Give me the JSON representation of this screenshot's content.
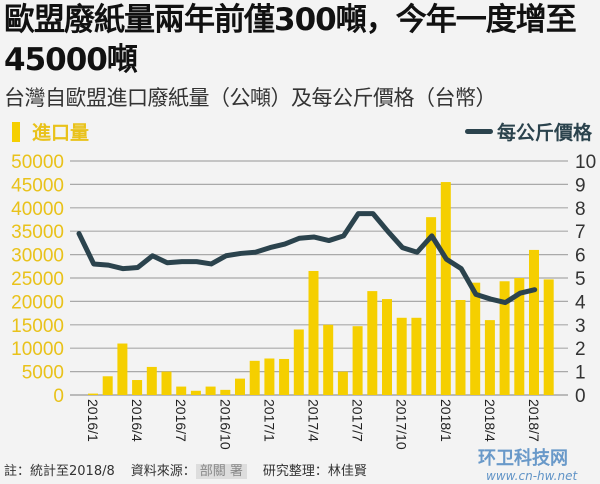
{
  "chart_data": {
    "type": "bar+line",
    "title": "歐盟廢紙量兩年前僅300噸，今年一度增至45000噸",
    "subtitle": "台灣自歐盟進口廢紙量（公噸）及每公斤價格（台幣）",
    "categories": [
      "2016/1",
      "2016/2",
      "2016/3",
      "2016/4",
      "2016/5",
      "2016/6",
      "2016/7",
      "2016/8",
      "2016/9",
      "2016/10",
      "2016/11",
      "2016/12",
      "2017/1",
      "2017/2",
      "2017/3",
      "2017/4",
      "2017/5",
      "2017/6",
      "2017/7",
      "2017/8",
      "2017/9",
      "2017/10",
      "2017/11",
      "2017/12",
      "2018/1",
      "2018/2",
      "2018/3",
      "2018/4",
      "2018/5",
      "2018/6",
      "2018/7",
      "2018/8"
    ],
    "tick_labels": [
      "2016/1",
      "2016/4",
      "2016/7",
      "2016/10",
      "2017/1",
      "2017/4",
      "2017/7",
      "2017/10",
      "2018/1",
      "2018/4",
      "2018/7"
    ],
    "series": [
      {
        "name": "進口量",
        "type": "bar",
        "axis": "left",
        "color": "#f5cf00",
        "values": [
          300,
          4000,
          11000,
          3200,
          6000,
          5000,
          1800,
          900,
          1800,
          1100,
          3500,
          7300,
          7800,
          7700,
          14000,
          26500,
          15000,
          5000,
          14700,
          22200,
          20500,
          16500,
          16500,
          38000,
          45500,
          20300,
          24000,
          16000,
          24300,
          25000,
          31000,
          24700
        ]
      },
      {
        "name": "每公斤價格",
        "type": "line",
        "axis": "right",
        "color": "#2b434d",
        "values": [
          6.9,
          5.6,
          5.55,
          5.4,
          5.45,
          5.95,
          5.65,
          5.7,
          5.7,
          5.6,
          5.95,
          6.05,
          6.1,
          6.3,
          6.45,
          6.7,
          6.75,
          6.6,
          6.8,
          7.75,
          7.75,
          7.0,
          6.3,
          6.1,
          6.8,
          5.8,
          5.4,
          4.3,
          4.1,
          3.95,
          4.35,
          4.5
        ]
      }
    ],
    "y_left": {
      "range": [
        0,
        50000
      ],
      "ticks": [
        "0",
        "5000",
        "10000",
        "15000",
        "20000",
        "25000",
        "30000",
        "35000",
        "40000",
        "45000",
        "50000"
      ],
      "color": "#e9c21a"
    },
    "y_right": {
      "range": [
        0,
        10
      ],
      "ticks": [
        "0",
        "1",
        "2",
        "3",
        "4",
        "5",
        "6",
        "7",
        "8",
        "9",
        "10"
      ],
      "color": "#333333"
    },
    "grid": true,
    "legend": "top"
  },
  "footer": {
    "note": "註：統計至2018/8",
    "source_label": "資料來源：",
    "source_visible": "部關 署",
    "research": "研究整理：林佳賢"
  },
  "watermark": {
    "name": "环卫科技网",
    "url": "www.cn-hw.net"
  }
}
